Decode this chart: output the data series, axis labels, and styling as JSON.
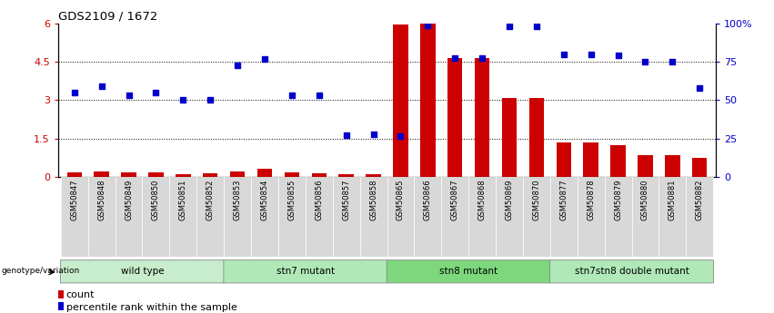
{
  "title": "GDS2109 / 1672",
  "samples": [
    "GSM50847",
    "GSM50848",
    "GSM50849",
    "GSM50850",
    "GSM50851",
    "GSM50852",
    "GSM50853",
    "GSM50854",
    "GSM50855",
    "GSM50856",
    "GSM50857",
    "GSM50858",
    "GSM50865",
    "GSM50866",
    "GSM50867",
    "GSM50868",
    "GSM50869",
    "GSM50870",
    "GSM50877",
    "GSM50878",
    "GSM50879",
    "GSM50880",
    "GSM50881",
    "GSM50882"
  ],
  "counts": [
    0.18,
    0.22,
    0.18,
    0.18,
    0.12,
    0.15,
    0.22,
    0.3,
    0.18,
    0.15,
    0.12,
    0.1,
    5.95,
    6.0,
    4.65,
    4.65,
    3.1,
    3.1,
    1.35,
    1.35,
    1.25,
    0.85,
    0.85,
    0.75
  ],
  "percentile": [
    55.0,
    59.0,
    53.0,
    55.0,
    50.5,
    50.5,
    73.0,
    77.0,
    53.0,
    53.0,
    27.0,
    27.5,
    26.5,
    99.0,
    77.5,
    77.5,
    98.0,
    98.0,
    80.0,
    80.0,
    79.0,
    75.0,
    75.0,
    58.0
  ],
  "groups": [
    {
      "label": "wild type",
      "start": 0,
      "end": 5,
      "color": "#c8edcc"
    },
    {
      "label": "stn7 mutant",
      "start": 6,
      "end": 11,
      "color": "#b0e8b8"
    },
    {
      "label": "stn8 mutant",
      "start": 12,
      "end": 17,
      "color": "#7dd87d"
    },
    {
      "label": "stn7stn8 double mutant",
      "start": 18,
      "end": 23,
      "color": "#b0e8b8"
    }
  ],
  "bar_color": "#cc0000",
  "dot_color": "#0000cc",
  "ylim_left": [
    0,
    6
  ],
  "ylim_right": [
    0,
    100
  ],
  "yticks_left": [
    0,
    1.5,
    3.0,
    4.5,
    6.0
  ],
  "ytick_labels_left": [
    "0",
    "1.5",
    "3",
    "4.5",
    "6"
  ],
  "yticks_right": [
    0,
    25,
    50,
    75,
    100
  ],
  "ytick_labels_right": [
    "0",
    "25",
    "50",
    "75",
    "100%"
  ],
  "legend_count": "count",
  "legend_percentile": "percentile rank within the sample",
  "genotype_label": "genotype/variation",
  "tick_label_color_left": "#cc0000",
  "tick_label_color_right": "#0000cc",
  "xtick_bg_color": "#d8d8d8"
}
